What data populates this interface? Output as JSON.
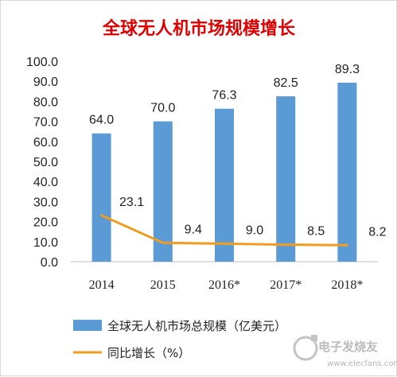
{
  "chart_data": {
    "type": "bar",
    "title": "全球无人机市场规模增长",
    "categories": [
      "2014",
      "2015",
      "2016*",
      "2017*",
      "2018*"
    ],
    "series": [
      {
        "name": "全球无人机市场总规模（亿美元）",
        "type": "bar",
        "values": [
          64.0,
          70.0,
          76.3,
          82.5,
          89.3
        ],
        "labels": [
          "64.0",
          "70.0",
          "76.3",
          "82.5",
          "89.3"
        ]
      },
      {
        "name": "同比增长（%）",
        "type": "line",
        "values": [
          23.1,
          9.4,
          9.0,
          8.5,
          8.2
        ],
        "labels": [
          "23.1",
          "9.4",
          "9.0",
          "8.5",
          "8.2"
        ]
      }
    ],
    "ylim": [
      0,
      100
    ],
    "yticks": [
      "0.0",
      "10.0",
      "20.0",
      "30.0",
      "40.0",
      "50.0",
      "60.0",
      "70.0",
      "80.0",
      "90.0",
      "100.0"
    ],
    "xlabel": "",
    "ylabel": "",
    "grid": false,
    "legend_position": "bottom",
    "colors": {
      "title": "#e00000",
      "bar": "#5b9bd5",
      "line": "#f29c1f",
      "axis": "#bfbfbf"
    }
  },
  "watermark": {
    "brand": "电子发烧友",
    "url": "www.elecfans.com"
  }
}
